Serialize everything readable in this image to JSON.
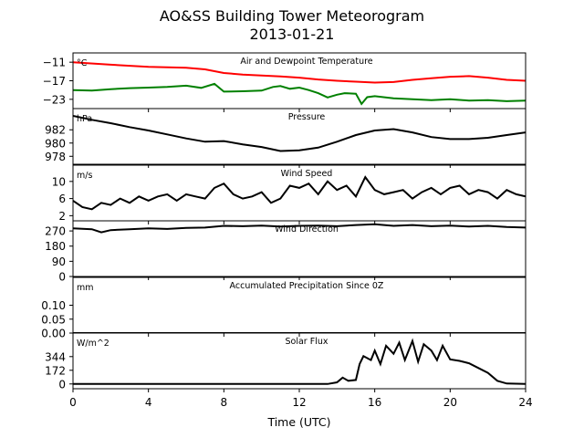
{
  "title_line1": "AO&SS Building Tower Meteorogram",
  "title_line2": "2013-01-21",
  "chart_data": {
    "type": "line",
    "xlabel": "Time (UTC)",
    "xlim": [
      0,
      24
    ],
    "xticks": [
      "0",
      "4",
      "8",
      "12",
      "16",
      "20",
      "24"
    ],
    "colors": {
      "temperature": "#ff0000",
      "dewpoint": "#008000",
      "default": "#000000"
    },
    "panels": [
      {
        "key": "temp",
        "title": "Air and Dewpoint Temperature",
        "unit": "°C",
        "ylim": [
          -26,
          -8
        ],
        "yticks": [
          -11,
          -17,
          -23
        ],
        "ytick_labels": [
          "−11",
          "−17",
          "−23"
        ],
        "series": [
          {
            "color": "#ff0000",
            "x": [
              0,
              2,
              4,
              6,
              7,
              8,
              9,
              10,
              11,
              12,
              13,
              14,
              15,
              16,
              17,
              18,
              19,
              20,
              21,
              22,
              23,
              24
            ],
            "y": [
              -11.0,
              -11.8,
              -12.5,
              -12.8,
              -13.3,
              -14.5,
              -15.0,
              -15.3,
              -15.6,
              -16.0,
              -16.6,
              -17.0,
              -17.3,
              -17.6,
              -17.4,
              -16.7,
              -16.2,
              -15.7,
              -15.5,
              -16.0,
              -16.7,
              -17.0
            ]
          },
          {
            "color": "#008000",
            "x": [
              0,
              1,
              2,
              3,
              4,
              5,
              6,
              6.8,
              7.5,
              8,
              9,
              10,
              10.6,
              11,
              11.5,
              12,
              12.5,
              13,
              13.5,
              14,
              14.4,
              15,
              15.3,
              15.6,
              16,
              17,
              18,
              19,
              20,
              21,
              22,
              23,
              24
            ],
            "y": [
              -20.0,
              -20.2,
              -19.7,
              -19.4,
              -19.2,
              -19.0,
              -18.6,
              -19.3,
              -18.0,
              -20.5,
              -20.4,
              -20.2,
              -19.0,
              -18.7,
              -19.6,
              -19.2,
              -20.0,
              -21.0,
              -22.4,
              -21.5,
              -21.0,
              -21.2,
              -24.5,
              -22.3,
              -22.0,
              -22.7,
              -23.0,
              -23.3,
              -23.0,
              -23.4,
              -23.3,
              -23.6,
              -23.4
            ]
          }
        ]
      },
      {
        "key": "pressure",
        "title": "Pressure",
        "unit": "hPa",
        "ylim": [
          976.8,
          985.2
        ],
        "yticks": [
          982,
          980,
          978
        ],
        "ytick_labels": [
          "982",
          "980",
          "978"
        ],
        "series": [
          {
            "color": "#000000",
            "x": [
              0,
              1,
              2,
              3,
              4,
              5,
              6,
              7,
              8,
              9,
              10,
              11,
              12,
              13,
              14,
              15,
              16,
              17,
              18,
              19,
              20,
              21,
              22,
              23,
              24
            ],
            "y": [
              984.1,
              983.5,
              983.0,
              982.4,
              981.9,
              981.3,
              980.7,
              980.2,
              980.3,
              979.8,
              979.4,
              978.8,
              978.9,
              979.3,
              980.2,
              981.2,
              981.9,
              982.1,
              981.6,
              980.9,
              980.6,
              980.6,
              980.8,
              981.2,
              981.6
            ]
          }
        ]
      },
      {
        "key": "wind",
        "title": "Wind Speed",
        "unit": "m/s",
        "ylim": [
          0.8,
          13.8
        ],
        "yticks": [
          10,
          6,
          2
        ],
        "ytick_labels": [
          "10",
          "6",
          "2"
        ],
        "series": [
          {
            "color": "#000000",
            "x": [
              0,
              0.5,
              1,
              1.5,
              2,
              2.5,
              3,
              3.5,
              4,
              4.5,
              5,
              5.5,
              6,
              6.5,
              7,
              7.5,
              8,
              8.5,
              9,
              9.5,
              10,
              10.5,
              11,
              11.5,
              12,
              12.5,
              13,
              13.5,
              14,
              14.5,
              15,
              15.5,
              16,
              16.5,
              17,
              17.5,
              18,
              18.5,
              19,
              19.5,
              20,
              20.5,
              21,
              21.5,
              22,
              22.5,
              23,
              23.5,
              24
            ],
            "y": [
              5.5,
              4.0,
              3.5,
              5.0,
              4.5,
              6.0,
              5.0,
              6.5,
              5.5,
              6.5,
              7.0,
              5.5,
              7.0,
              6.5,
              6.0,
              8.5,
              9.5,
              7.0,
              6.0,
              6.5,
              7.5,
              5.0,
              6.0,
              9.0,
              8.5,
              9.5,
              7.0,
              10.0,
              8.0,
              9.0,
              6.5,
              11.0,
              8.0,
              7.0,
              7.5,
              8.0,
              6.0,
              7.5,
              8.5,
              7.0,
              8.5,
              9.0,
              7.0,
              8.0,
              7.5,
              6.0,
              8.0,
              7.0,
              6.5
            ]
          }
        ]
      },
      {
        "key": "direction",
        "title": "Wind Direction",
        "unit": "",
        "ylim": [
          0,
          330
        ],
        "yticks": [
          270,
          180,
          90,
          0
        ],
        "ytick_labels": [
          "270",
          "180",
          "90",
          "0"
        ],
        "series": [
          {
            "color": "#000000",
            "x": [
              0,
              1,
              1.5,
              2,
              3,
              4,
              5,
              6,
              7,
              8,
              9,
              10,
              11,
              12,
              13,
              14,
              15,
              16,
              17,
              18,
              19,
              20,
              21,
              22,
              23,
              24
            ],
            "y": [
              285,
              280,
              262,
              275,
              280,
              285,
              282,
              288,
              290,
              300,
              298,
              302,
              296,
              300,
              302,
              298,
              305,
              310,
              300,
              305,
              298,
              302,
              296,
              300,
              294,
              290
            ]
          }
        ]
      },
      {
        "key": "precip",
        "title": "Accumulated Precipitation Since 0Z",
        "unit": "mm",
        "ylim": [
          0,
          0.2
        ],
        "yticks": [
          0.1,
          0.05,
          0.0
        ],
        "ytick_labels": [
          "0.10",
          "0.05",
          "0.00"
        ],
        "series": [
          {
            "color": "#000000",
            "x": [
              0,
              24
            ],
            "y": [
              0.0,
              0.0
            ]
          }
        ]
      },
      {
        "key": "solar",
        "title": "Solar Flux",
        "unit": "W/m^2",
        "ylim": [
          -60,
          640
        ],
        "yticks": [
          344,
          172,
          0
        ],
        "ytick_labels": [
          "344",
          "172",
          "0"
        ],
        "series": [
          {
            "color": "#000000",
            "x": [
              0,
              13.5,
              14,
              14.3,
              14.6,
              15,
              15.2,
              15.4,
              15.8,
              16,
              16.3,
              16.6,
              17,
              17.3,
              17.6,
              18,
              18.3,
              18.6,
              19,
              19.3,
              19.6,
              20,
              20.5,
              21,
              21.5,
              22,
              22.5,
              23,
              24
            ],
            "y": [
              0,
              0,
              20,
              80,
              40,
              50,
              250,
              350,
              300,
              420,
              250,
              480,
              380,
              520,
              300,
              540,
              280,
              500,
              420,
              300,
              480,
              310,
              290,
              260,
              200,
              140,
              40,
              5,
              0
            ]
          }
        ]
      }
    ]
  }
}
